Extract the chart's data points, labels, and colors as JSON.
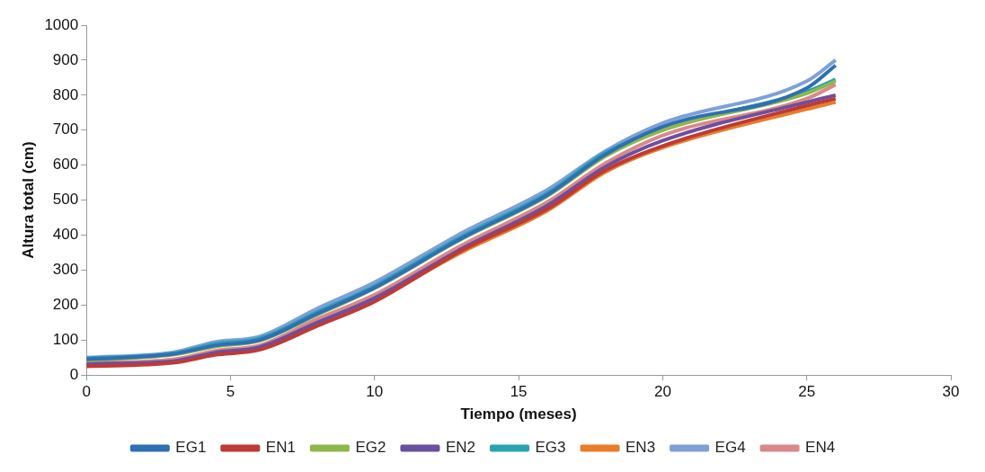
{
  "chart_data": {
    "type": "line",
    "xlabel": "Tiempo (meses)",
    "ylabel": "Altura total (cm)",
    "x": [
      0,
      3,
      4.5,
      6,
      8,
      10,
      13,
      16,
      18,
      20,
      25,
      26
    ],
    "xlim": [
      0,
      30
    ],
    "xticks": [
      0,
      5,
      10,
      15,
      20,
      25,
      30
    ],
    "ylim": [
      0,
      1000
    ],
    "yticks": [
      0,
      100,
      200,
      300,
      400,
      500,
      600,
      700,
      800,
      900,
      1000
    ],
    "grid": false,
    "legend": "bottom",
    "marker": "none",
    "line_style": "solid",
    "series": [
      {
        "name": "EG1",
        "color": "#2e6fb5",
        "values": [
          45,
          60,
          85,
          100,
          175,
          250,
          390,
          515,
          630,
          710,
          820,
          885
        ]
      },
      {
        "name": "EN1",
        "color": "#be3a36",
        "values": [
          25,
          35,
          58,
          72,
          140,
          210,
          355,
          475,
          585,
          655,
          770,
          790
        ]
      },
      {
        "name": "EG2",
        "color": "#8db84a",
        "values": [
          42,
          58,
          82,
          98,
          172,
          248,
          388,
          512,
          625,
          700,
          805,
          840
        ]
      },
      {
        "name": "EN2",
        "color": "#6c4f9f",
        "values": [
          32,
          40,
          65,
          80,
          150,
          220,
          360,
          485,
          595,
          670,
          780,
          800
        ]
      },
      {
        "name": "EG3",
        "color": "#2aa3b6",
        "values": [
          48,
          62,
          90,
          105,
          180,
          255,
          395,
          520,
          635,
          705,
          810,
          845
        ]
      },
      {
        "name": "EN3",
        "color": "#e87d2a",
        "values": [
          28,
          38,
          60,
          75,
          145,
          215,
          350,
          470,
          580,
          650,
          760,
          780
        ]
      },
      {
        "name": "EG4",
        "color": "#7f9fd8",
        "values": [
          50,
          65,
          95,
          110,
          190,
          265,
          405,
          530,
          640,
          720,
          840,
          900
        ]
      },
      {
        "name": "EN4",
        "color": "#d9898a",
        "values": [
          35,
          45,
          70,
          85,
          160,
          230,
          370,
          495,
          605,
          685,
          790,
          830
        ]
      }
    ]
  }
}
